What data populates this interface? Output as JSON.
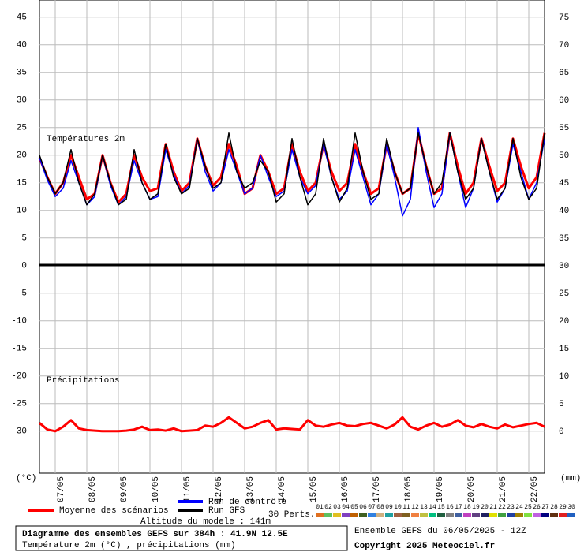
{
  "chart_data": {
    "type": "line",
    "panel_labels": [
      "Températures 2m",
      "Précipitations"
    ],
    "y_unit": "(°C)",
    "y2_unit": "(mm)",
    "x": [
      0,
      6,
      12,
      18,
      24,
      30,
      36,
      42,
      48,
      54,
      60,
      66,
      72,
      78,
      84,
      90,
      96,
      102,
      108,
      114,
      120,
      126,
      132,
      138,
      144,
      150,
      156,
      162,
      168,
      174,
      180,
      186,
      192,
      198,
      204,
      210,
      216,
      222,
      228,
      234,
      240,
      246,
      252,
      258,
      264,
      270,
      276,
      282,
      288,
      294,
      300,
      306,
      312,
      318,
      324,
      330,
      336,
      342,
      348,
      354,
      360,
      366,
      372,
      378,
      384
    ],
    "xlim": [
      0,
      384
    ],
    "xticks": [
      {
        "value": 12,
        "label": "07/05"
      },
      {
        "value": 36,
        "label": "08/05"
      },
      {
        "value": 60,
        "label": "09/05"
      },
      {
        "value": 84,
        "label": "10/05"
      },
      {
        "value": 108,
        "label": "11/05"
      },
      {
        "value": 132,
        "label": "12/05"
      },
      {
        "value": 156,
        "label": "13/05"
      },
      {
        "value": 180,
        "label": "14/05"
      },
      {
        "value": 204,
        "label": "15/05"
      },
      {
        "value": 228,
        "label": "16/05"
      },
      {
        "value": 252,
        "label": "17/05"
      },
      {
        "value": 276,
        "label": "18/05"
      },
      {
        "value": 300,
        "label": "19/05"
      },
      {
        "value": 324,
        "label": "20/05"
      },
      {
        "value": 348,
        "label": "21/05"
      },
      {
        "value": 372,
        "label": "22/05"
      }
    ],
    "ylim": [
      -37.6,
      48.1
    ],
    "yticks": [
      -30,
      -25,
      -20,
      -15,
      -10,
      -5,
      0,
      5,
      10,
      15,
      20,
      25,
      30,
      35,
      40,
      45
    ],
    "y2lim": [
      -7.6,
      78.1
    ],
    "y2ticks": [
      0,
      5,
      10,
      15,
      20,
      25,
      30,
      35,
      40,
      45,
      50,
      55,
      60,
      65,
      70,
      75
    ],
    "grid": true,
    "series": [
      {
        "name": "Moyenne des scénarios",
        "color": "#ff0000",
        "values": [
          19.5,
          16,
          13,
          15,
          20,
          16,
          12,
          13,
          20,
          15,
          11.5,
          13,
          20,
          16,
          13.5,
          14,
          22,
          17,
          13.5,
          15,
          23,
          18,
          14.5,
          16,
          22,
          18,
          13,
          14,
          20,
          17,
          13,
          14,
          22,
          17,
          13.5,
          15,
          22,
          17,
          13.5,
          15,
          22,
          17,
          13,
          14,
          22,
          17,
          13,
          14,
          24,
          18,
          13,
          14,
          24,
          18,
          13,
          15,
          23,
          18,
          13.5,
          15,
          23,
          18,
          14,
          16,
          24
        ]
      },
      {
        "name": "Run de contrôle",
        "color": "#0000ff",
        "values": [
          19.5,
          15.5,
          12.5,
          14,
          19,
          15,
          11,
          12.5,
          20,
          14.5,
          11,
          12.5,
          19,
          15,
          12,
          12.5,
          21,
          16.5,
          13,
          14.5,
          23,
          17,
          13.5,
          15,
          21,
          17,
          13,
          14,
          20,
          16,
          12.5,
          13.5,
          21,
          16,
          13,
          14.5,
          22,
          16,
          12,
          13.5,
          21,
          16,
          11,
          13,
          22,
          16,
          9,
          12,
          25,
          17,
          10.5,
          13,
          24,
          17,
          10.5,
          14,
          23,
          17,
          11.5,
          14,
          22,
          17,
          12,
          15,
          23
        ]
      },
      {
        "name": "Run GFS",
        "color": "#000000",
        "values": [
          20,
          16,
          13,
          15,
          21,
          15,
          11,
          13,
          20,
          15,
          11,
          12,
          21,
          15,
          12,
          13,
          22,
          16,
          13,
          14,
          23,
          18,
          14,
          15,
          24,
          17,
          14,
          15,
          19,
          17,
          11.5,
          13,
          23,
          16,
          11,
          13,
          23,
          16,
          11.5,
          14,
          24,
          17,
          12,
          13,
          23,
          17,
          13,
          14,
          24,
          18,
          13,
          15,
          24,
          17,
          12,
          14,
          23,
          17,
          12,
          14,
          23,
          16,
          12,
          14,
          24
        ]
      },
      {
        "color": "#ff0000",
        "axis": "y2",
        "values": [
          1.5,
          0.3,
          0,
          0.8,
          2,
          0.5,
          0.2,
          0.1,
          0,
          0,
          0,
          0.1,
          0.3,
          0.8,
          0.2,
          0.3,
          0.1,
          0.5,
          0,
          0.1,
          0.2,
          1,
          0.8,
          1.5,
          2.5,
          1.5,
          0.5,
          0.8,
          1.5,
          2,
          0.3,
          0.5,
          0.4,
          0.3,
          2,
          1,
          0.8,
          1.2,
          1.5,
          1,
          0.9,
          1.3,
          1.5,
          1,
          0.5,
          1.2,
          2.5,
          0.8,
          0.3,
          1,
          1.5,
          0.8,
          1.2,
          2,
          1,
          0.7,
          1.3,
          0.8,
          0.5,
          1.2,
          0.7,
          1,
          1.3,
          1.5,
          0.8
        ]
      }
    ],
    "perturbations_label": "30 Perts.",
    "perturbations": [
      {
        "label": "01",
        "color": "#e07020"
      },
      {
        "label": "02",
        "color": "#60c060"
      },
      {
        "label": "03",
        "color": "#e0c020"
      },
      {
        "label": "04",
        "color": "#8040c0"
      },
      {
        "label": "05",
        "color": "#c06000"
      },
      {
        "label": "06",
        "color": "#406020"
      },
      {
        "label": "07",
        "color": "#3080e0"
      },
      {
        "label": "08",
        "color": "#d0b080"
      },
      {
        "label": "09",
        "color": "#20a0a0"
      },
      {
        "label": "10",
        "color": "#a06040"
      },
      {
        "label": "11",
        "color": "#806020"
      },
      {
        "label": "12",
        "color": "#f08040"
      },
      {
        "label": "13",
        "color": "#c0c040"
      },
      {
        "label": "14",
        "color": "#00c080"
      },
      {
        "label": "15",
        "color": "#206040"
      },
      {
        "label": "16",
        "color": "#808080"
      },
      {
        "label": "17",
        "color": "#4060a0"
      },
      {
        "label": "18",
        "color": "#c040c0"
      },
      {
        "label": "19",
        "color": "#604080"
      },
      {
        "label": "20",
        "color": "#202060"
      },
      {
        "label": "21",
        "color": "#e0e000"
      },
      {
        "label": "22",
        "color": "#40a040"
      },
      {
        "label": "23",
        "color": "#2040a0"
      },
      {
        "label": "24",
        "color": "#a08000"
      },
      {
        "label": "25",
        "color": "#80e040"
      },
      {
        "label": "26",
        "color": "#c060e0"
      },
      {
        "label": "27",
        "color": "#000080"
      },
      {
        "label": "28",
        "color": "#603010"
      },
      {
        "label": "29",
        "color": "#e02020"
      },
      {
        "label": "30",
        "color": "#2060c0"
      }
    ],
    "altitude": "Altitude du modele : 141m",
    "info_title": "Diagramme des ensembles GEFS sur 384h : 41.9N 12.5E",
    "info_subtitle": "Température 2m (°C) , précipitations (mm)",
    "run_info": "Ensemble GEFS du 06/05/2025 - 12Z",
    "copyright": "Copyright 2025 Meteociel.fr"
  }
}
